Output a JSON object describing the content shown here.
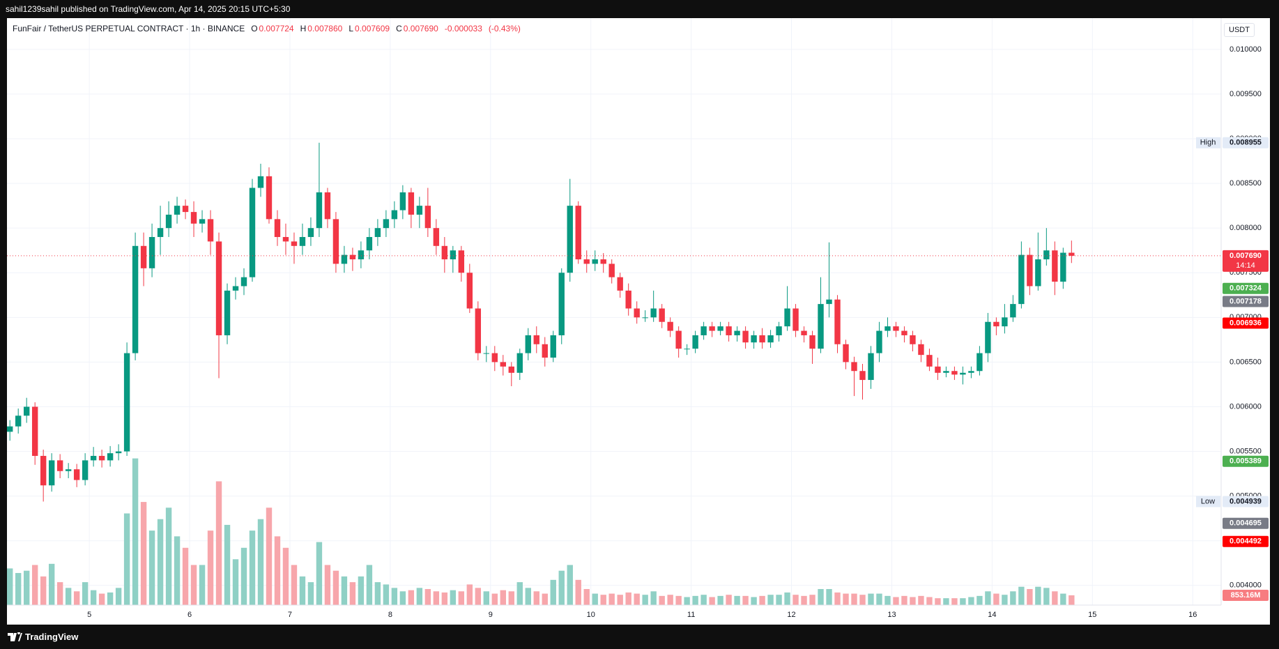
{
  "page": {
    "publisher_line": "sahil1239sahil published on TradingView.com, Apr 14, 2025 20:15 UTC+5:30",
    "footer_brand": "TradingView"
  },
  "chart_data": {
    "type": "candlestick",
    "title": "FunFair / TetherUS PERPETUAL CONTRACT · 1h · BINANCE",
    "legend": [
      {
        "key": "O",
        "value": 0.007724
      },
      {
        "key": "H",
        "value": 0.00786,
        "label": "0.007860"
      },
      {
        "key": "L",
        "value": 0.007609
      },
      {
        "key": "C",
        "value": 0.00769,
        "label": "0.007690"
      },
      {
        "value": -3.3e-05
      },
      {
        "value": -0.43,
        "label": "(-0.43%)"
      }
    ],
    "legend_value_color": "#f23645",
    "currency": "USDT",
    "x": [
      -19,
      -17,
      -15,
      -13,
      -11,
      -9,
      -7,
      -5,
      -3,
      -1,
      1,
      3,
      5,
      7,
      9,
      11,
      13,
      15,
      17,
      19,
      21,
      23,
      25,
      27,
      29,
      31,
      33,
      35,
      37,
      39,
      41,
      43,
      45,
      47,
      49,
      51,
      53,
      55,
      57,
      59,
      61,
      63,
      65,
      67,
      69,
      71,
      73,
      75,
      77,
      79,
      81,
      83,
      85,
      87,
      89,
      91,
      93,
      95,
      97,
      99,
      101,
      103,
      105,
      107,
      109,
      111,
      113,
      115,
      117,
      119,
      121,
      123,
      125,
      127,
      129,
      131,
      133,
      135,
      137,
      139,
      141,
      143,
      145,
      147,
      149,
      151,
      153,
      155,
      157,
      159,
      161,
      163,
      165,
      167,
      169,
      171,
      173,
      175,
      177,
      179,
      181,
      183,
      185,
      187,
      189,
      191,
      193,
      195,
      197,
      199,
      201,
      203,
      205,
      207,
      209,
      211,
      213,
      215,
      217,
      219,
      221,
      223,
      225,
      227,
      229,
      231,
      233,
      235
    ],
    "open": [
      0.00572,
      0.00578,
      0.0059,
      0.006,
      0.00545,
      0.00512,
      0.0054,
      0.00528,
      0.0053,
      0.00518,
      0.0054,
      0.00545,
      0.0054,
      0.00548,
      0.0055,
      0.0066,
      0.0078,
      0.00755,
      0.0079,
      0.008,
      0.00815,
      0.00825,
      0.00818,
      0.00805,
      0.0081,
      0.00785,
      0.0068,
      0.0073,
      0.00735,
      0.00745,
      0.00845,
      0.00858,
      0.0081,
      0.0079,
      0.00785,
      0.0078,
      0.0079,
      0.008,
      0.0084,
      0.0081,
      0.0076,
      0.0077,
      0.00765,
      0.00775,
      0.0079,
      0.008,
      0.0081,
      0.0082,
      0.0084,
      0.00815,
      0.00825,
      0.008,
      0.0078,
      0.00765,
      0.00775,
      0.0075,
      0.0071,
      0.0066,
      0.0066,
      0.0065,
      0.00645,
      0.00638,
      0.0066,
      0.0068,
      0.0067,
      0.00655,
      0.0068,
      0.0075,
      0.00825,
      0.00765,
      0.0076,
      0.00765,
      0.0076,
      0.00745,
      0.0073,
      0.0071,
      0.007,
      0.007,
      0.0071,
      0.00695,
      0.00685,
      0.00665,
      0.00665,
      0.0068,
      0.0069,
      0.00685,
      0.0069,
      0.0068,
      0.00685,
      0.00672,
      0.0068,
      0.00672,
      0.0068,
      0.0069,
      0.0071,
      0.00685,
      0.0068,
      0.00665,
      0.00715,
      0.0072,
      0.0067,
      0.0065,
      0.0064,
      0.0063,
      0.0066,
      0.00685,
      0.0069,
      0.00685,
      0.0068,
      0.0067,
      0.00658,
      0.00645,
      0.00638,
      0.0064,
      0.00636,
      0.00638,
      0.0064,
      0.0066,
      0.00695,
      0.0069,
      0.007,
      0.00715,
      0.0077,
      0.00735,
      0.00765,
      0.00775,
      0.0074,
      0.007724
    ],
    "high": [
      0.00585,
      0.00598,
      0.0061,
      0.00605,
      0.00552,
      0.00548,
      0.00547,
      0.00537,
      0.00536,
      0.00548,
      0.00555,
      0.00552,
      0.00556,
      0.00558,
      0.00672,
      0.00795,
      0.00795,
      0.00805,
      0.00825,
      0.0083,
      0.00835,
      0.00832,
      0.0083,
      0.0082,
      0.0082,
      0.00795,
      0.00738,
      0.00745,
      0.00755,
      0.00855,
      0.00872,
      0.00868,
      0.0082,
      0.00805,
      0.00795,
      0.00805,
      0.00812,
      0.008955,
      0.00845,
      0.00818,
      0.0078,
      0.00778,
      0.00785,
      0.008,
      0.0081,
      0.0082,
      0.0083,
      0.00848,
      0.00845,
      0.00835,
      0.00845,
      0.0081,
      0.0079,
      0.0078,
      0.0078,
      0.0076,
      0.00718,
      0.00668,
      0.00668,
      0.00658,
      0.0065,
      0.00665,
      0.00688,
      0.0069,
      0.00678,
      0.00685,
      0.00755,
      0.00855,
      0.0083,
      0.00775,
      0.00775,
      0.00772,
      0.00765,
      0.0075,
      0.00738,
      0.00718,
      0.00708,
      0.0073,
      0.00715,
      0.007,
      0.0069,
      0.0067,
      0.00685,
      0.00695,
      0.00695,
      0.00695,
      0.00695,
      0.0069,
      0.0069,
      0.00685,
      0.00688,
      0.00686,
      0.00695,
      0.00735,
      0.00715,
      0.0069,
      0.00685,
      0.00745,
      0.00784,
      0.00725,
      0.00675,
      0.00656,
      0.00648,
      0.00668,
      0.00695,
      0.007,
      0.00695,
      0.0069,
      0.00685,
      0.00675,
      0.00665,
      0.00655,
      0.00645,
      0.00645,
      0.00645,
      0.00645,
      0.00668,
      0.00705,
      0.007,
      0.00715,
      0.00725,
      0.00785,
      0.00778,
      0.00795,
      0.008,
      0.00785,
      0.00778,
      0.00786
    ],
    "low": [
      0.00562,
      0.0057,
      0.00582,
      0.00535,
      0.004939,
      0.00505,
      0.0052,
      0.0052,
      0.0051,
      0.00512,
      0.00533,
      0.00532,
      0.00533,
      0.0054,
      0.00545,
      0.00652,
      0.00735,
      0.00745,
      0.0077,
      0.0079,
      0.00805,
      0.0081,
      0.0079,
      0.00795,
      0.0077,
      0.00632,
      0.0067,
      0.0072,
      0.00725,
      0.0074,
      0.00835,
      0.00805,
      0.0078,
      0.0077,
      0.0076,
      0.0077,
      0.0078,
      0.0079,
      0.008,
      0.0075,
      0.0075,
      0.00752,
      0.00755,
      0.00765,
      0.0078,
      0.0079,
      0.008,
      0.0081,
      0.008,
      0.008,
      0.0079,
      0.0077,
      0.0075,
      0.0075,
      0.0074,
      0.00705,
      0.00652,
      0.0065,
      0.0064,
      0.00635,
      0.00623,
      0.0063,
      0.00652,
      0.0066,
      0.00645,
      0.0065,
      0.0067,
      0.0074,
      0.0076,
      0.0075,
      0.00752,
      0.0075,
      0.00738,
      0.00722,
      0.00702,
      0.00693,
      0.00695,
      0.00695,
      0.00688,
      0.00678,
      0.00655,
      0.00658,
      0.0066,
      0.00675,
      0.00678,
      0.0068,
      0.00673,
      0.00673,
      0.00665,
      0.00665,
      0.00665,
      0.00666,
      0.00673,
      0.00685,
      0.00678,
      0.00672,
      0.00648,
      0.0066,
      0.007,
      0.0066,
      0.00642,
      0.00612,
      0.00608,
      0.0062,
      0.0065,
      0.00678,
      0.00678,
      0.00672,
      0.00662,
      0.0065,
      0.0064,
      0.0063,
      0.00633,
      0.0063,
      0.00625,
      0.00632,
      0.00635,
      0.0065,
      0.0068,
      0.00682,
      0.00695,
      0.0071,
      0.00725,
      0.0073,
      0.00758,
      0.00725,
      0.00732,
      0.007609
    ],
    "close": [
      0.00578,
      0.0059,
      0.006,
      0.00545,
      0.00512,
      0.0054,
      0.00528,
      0.0053,
      0.00518,
      0.0054,
      0.00545,
      0.0054,
      0.00548,
      0.0055,
      0.0066,
      0.0078,
      0.00755,
      0.0079,
      0.008,
      0.00815,
      0.00825,
      0.00818,
      0.00805,
      0.0081,
      0.00785,
      0.0068,
      0.0073,
      0.00735,
      0.00745,
      0.00845,
      0.00858,
      0.0081,
      0.0079,
      0.00785,
      0.0078,
      0.0079,
      0.008,
      0.0084,
      0.0081,
      0.0076,
      0.0077,
      0.00765,
      0.00775,
      0.0079,
      0.008,
      0.0081,
      0.0082,
      0.0084,
      0.00815,
      0.00825,
      0.008,
      0.0078,
      0.00765,
      0.00775,
      0.0075,
      0.0071,
      0.0066,
      0.0066,
      0.0065,
      0.00645,
      0.00638,
      0.0066,
      0.0068,
      0.0067,
      0.00655,
      0.0068,
      0.0075,
      0.00825,
      0.00765,
      0.0076,
      0.00765,
      0.0076,
      0.00745,
      0.0073,
      0.0071,
      0.007,
      0.007,
      0.0071,
      0.00695,
      0.00685,
      0.00665,
      0.00665,
      0.0068,
      0.0069,
      0.00685,
      0.0069,
      0.0068,
      0.00685,
      0.00672,
      0.0068,
      0.00672,
      0.0068,
      0.0069,
      0.0071,
      0.00685,
      0.0068,
      0.00665,
      0.00715,
      0.0072,
      0.0067,
      0.0065,
      0.0064,
      0.0063,
      0.0066,
      0.00685,
      0.0069,
      0.00685,
      0.0068,
      0.0067,
      0.00658,
      0.00645,
      0.00638,
      0.0064,
      0.00636,
      0.00638,
      0.0064,
      0.0066,
      0.00695,
      0.0069,
      0.007,
      0.00715,
      0.0077,
      0.00735,
      0.00765,
      0.00775,
      0.0074,
      0.007724,
      0.00769
    ],
    "volume": [
      3200000000,
      2800000000,
      3000000000,
      3500000000,
      2500000000,
      3600000000,
      2000000000,
      1500000000,
      1200000000,
      2000000000,
      1300000000,
      1000000000,
      1100000000,
      1500000000,
      8000000000,
      12800000000,
      9000000000,
      6500000000,
      7500000000,
      8500000000,
      6000000000,
      5000000000,
      3500000000,
      3500000000,
      6500000000,
      10800000000,
      7000000000,
      4000000000,
      5000000000,
      6500000000,
      7500000000,
      8500000000,
      6000000000,
      5000000000,
      3500000000,
      2500000000,
      2000000000,
      5500000000,
      3500000000,
      3000000000,
      2500000000,
      2000000000,
      2500000000,
      3500000000,
      2000000000,
      1800000000,
      1500000000,
      1200000000,
      1300000000,
      1500000000,
      1400000000,
      1200000000,
      1100000000,
      1300000000,
      1200000000,
      1800000000,
      1500000000,
      1200000000,
      1000000000,
      1300000000,
      1200000000,
      2000000000,
      1500000000,
      1200000000,
      1000000000,
      2200000000,
      3000000000,
      3500000000,
      2200000000,
      1400000000,
      1000000000,
      900000000,
      1000000000,
      900000000,
      1100000000,
      1000000000,
      900000000,
      1200000000,
      800000000,
      900000000,
      800000000,
      700000000,
      800000000,
      900000000,
      700000000,
      800000000,
      900000000,
      800000000,
      800000000,
      700000000,
      800000000,
      900000000,
      900000000,
      1100000000,
      900000000,
      800000000,
      900000000,
      1400000000,
      1400000000,
      1100000000,
      1000000000,
      1000000000,
      900000000,
      1000000000,
      1000000000,
      800000000,
      700000000,
      800000000,
      700000000,
      800000000,
      700000000,
      600000000,
      600000000,
      600000000,
      600000000,
      700000000,
      800000000,
      1200000000,
      1000000000,
      900000000,
      1200000000,
      1600000000,
      1400000000,
      1600000000,
      1500000000,
      1200000000,
      1000000000,
      853160000
    ],
    "up_color": "#089981",
    "down_color": "#f23645",
    "volume_up_color": "#8fd0c5",
    "volume_down_color": "#f7a6ab",
    "xlim": [
      -19.7,
      270.8
    ],
    "xticks": [
      {
        "value": 0,
        "label": "5"
      },
      {
        "value": 24,
        "label": "6"
      },
      {
        "value": 48,
        "label": "7"
      },
      {
        "value": 72,
        "label": "8"
      },
      {
        "value": 96,
        "label": "9"
      },
      {
        "value": 120,
        "label": "10"
      },
      {
        "value": 144,
        "label": "11"
      },
      {
        "value": 168,
        "label": "12"
      },
      {
        "value": 192,
        "label": "13"
      },
      {
        "value": 216,
        "label": "14"
      },
      {
        "value": 240,
        "label": "15"
      },
      {
        "value": 264,
        "label": "16"
      }
    ],
    "ylim": [
      0.00378,
      0.01035
    ],
    "yticks": [
      {
        "value": 0.004,
        "label": "0.004000"
      },
      {
        "value": 0.0045,
        "label": "0.004500"
      },
      {
        "value": 0.005,
        "label": "0.005000"
      },
      {
        "value": 0.0055,
        "label": "0.005500"
      },
      {
        "value": 0.006,
        "label": "0.006000"
      },
      {
        "value": 0.0065,
        "label": "0.006500"
      },
      {
        "value": 0.007,
        "label": "0.007000"
      },
      {
        "value": 0.0075,
        "label": "0.007500"
      },
      {
        "value": 0.008,
        "label": "0.008000"
      },
      {
        "value": 0.0085,
        "label": "0.008500"
      },
      {
        "value": 0.009,
        "label": "0.009000"
      },
      {
        "value": 0.0095,
        "label": "0.009500"
      },
      {
        "value": 0.01,
        "label": "0.010000"
      }
    ],
    "vlim": [
      0,
      16000000000
    ],
    "grid": true,
    "price_labels": [
      {
        "value": 0.00769,
        "label": "0.007690",
        "color": "#f23645",
        "text_color": "#ffffff",
        "countdown": "14:14",
        "line": "dotted"
      },
      {
        "value": 0.007324,
        "color": "#4caf50",
        "text_color": "#ffffff"
      },
      {
        "value": 0.007178,
        "color": "#787b86",
        "text_color": "#ffffff"
      },
      {
        "value": 0.006936,
        "color": "#ff0000",
        "text_color": "#ffffff"
      },
      {
        "value": 0.005389,
        "color": "#4caf50",
        "text_color": "#ffffff"
      },
      {
        "value": 0.004695,
        "color": "#787b86",
        "text_color": "#ffffff"
      },
      {
        "value": 0.004492,
        "color": "#ff0000",
        "text_color": "#ffffff"
      },
      {
        "name": "High",
        "value": 0.008955,
        "color": "#e3ebf7",
        "text_color": "#131722"
      },
      {
        "name": "Low",
        "value": 0.004939,
        "color": "#e3ebf7",
        "text_color": "#131722"
      }
    ],
    "last_volume_label": "853.16M",
    "last_volume_label_color": "#f77c80"
  }
}
